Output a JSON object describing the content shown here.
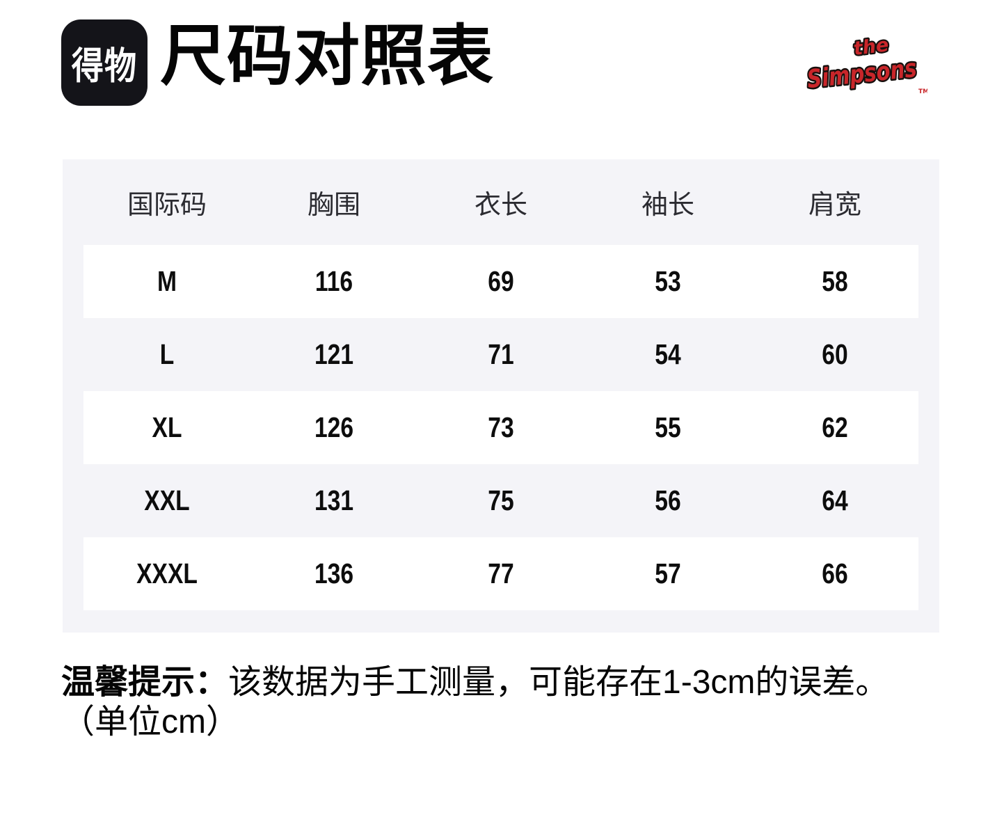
{
  "header": {
    "logo_text": "得物",
    "title": "尺码对照表",
    "brand": {
      "the": "the",
      "name": "Simpsons",
      "tm": "TM",
      "color": "#c9262a"
    }
  },
  "table": {
    "columns": [
      "国际码",
      "胸围",
      "衣长",
      "袖长",
      "肩宽"
    ],
    "rows": [
      {
        "size": "M",
        "values": [
          "116",
          "69",
          "53",
          "58"
        ]
      },
      {
        "size": "L",
        "values": [
          "121",
          "71",
          "54",
          "60"
        ]
      },
      {
        "size": "XL",
        "values": [
          "126",
          "73",
          "55",
          "62"
        ]
      },
      {
        "size": "XXL",
        "values": [
          "131",
          "75",
          "56",
          "64"
        ]
      },
      {
        "size": "XXXL",
        "values": [
          "136",
          "77",
          "57",
          "66"
        ]
      }
    ]
  },
  "note": {
    "label": "温馨提示：",
    "text": "该数据为手工测量，可能存在1-3cm的误差。",
    "unit": "（单位cm）"
  },
  "colors": {
    "table_bg": "#f4f4f8",
    "row_bg": "#ffffff",
    "logo_bg": "#141419",
    "brand_red": "#c9262a",
    "text": "#050505"
  }
}
